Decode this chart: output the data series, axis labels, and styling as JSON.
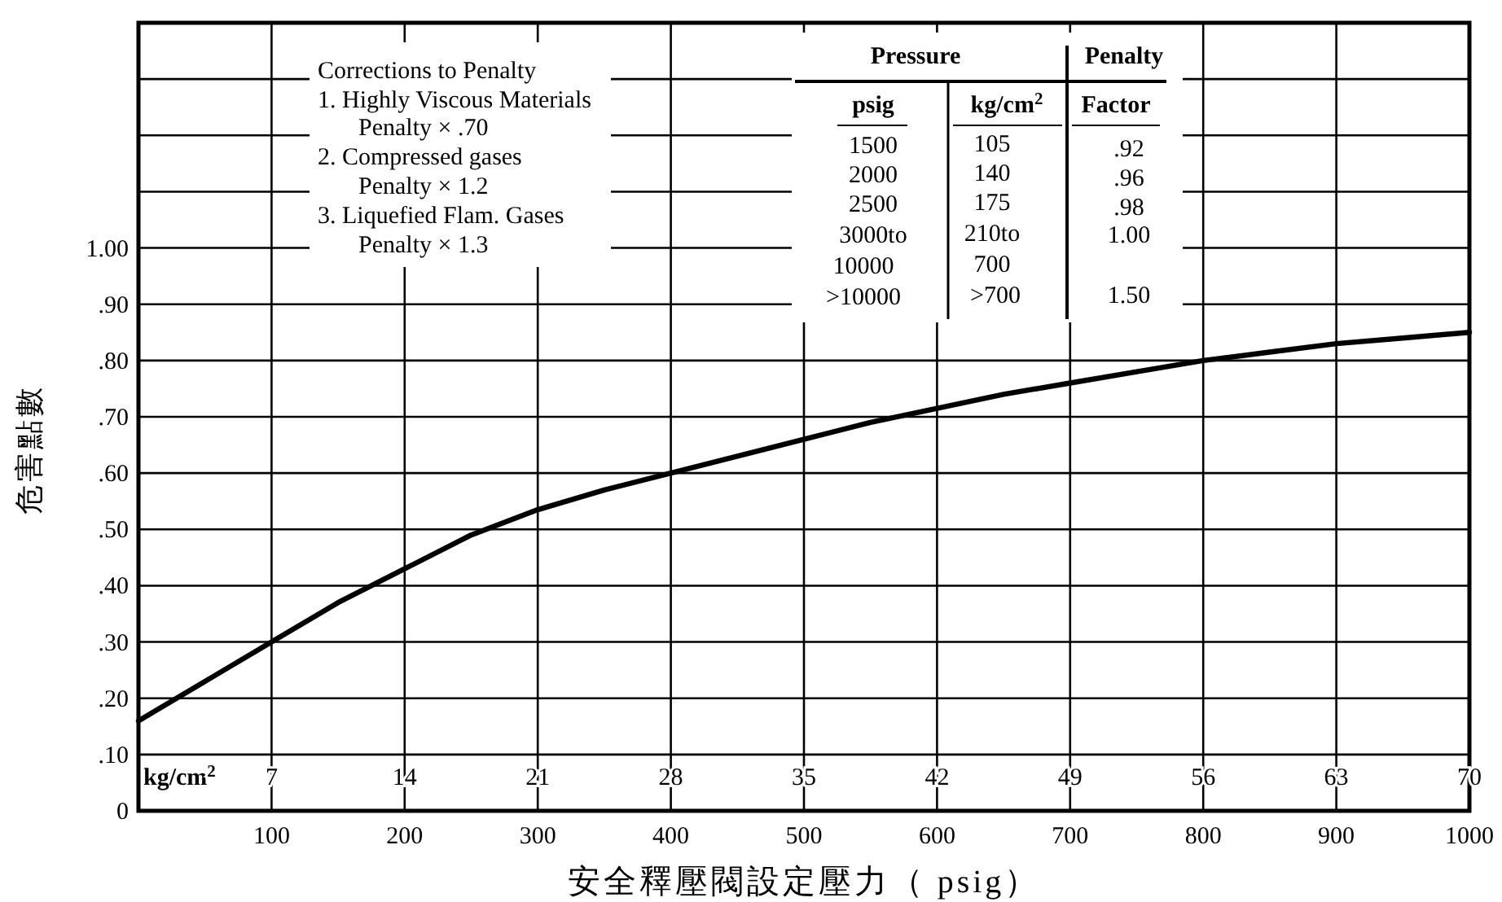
{
  "chart_data": {
    "type": "line",
    "xlabel": "安全釋壓閥設定壓力（ psig）",
    "ylabel": "危害點數",
    "x2label": "kg/cm$^{2}$",
    "x": [
      0,
      50,
      100,
      150,
      200,
      250,
      300,
      350,
      400,
      450,
      500,
      550,
      600,
      650,
      700,
      750,
      800,
      850,
      900,
      950,
      1000
    ],
    "series": [
      {
        "color": "#000000",
        "values": [
          0.16,
          0.23,
          0.3,
          0.37,
          0.43,
          0.49,
          0.535,
          0.57,
          0.6,
          0.63,
          0.66,
          0.69,
          0.715,
          0.74,
          0.76,
          0.78,
          0.8,
          0.815,
          0.83,
          0.84,
          0.85
        ]
      }
    ],
    "xlim": [
      0,
      1000
    ],
    "ylim": [
      0,
      1.4
    ],
    "x2lim": [
      0,
      70
    ],
    "xticks": [
      100,
      200,
      300,
      400,
      500,
      600,
      700,
      800,
      900,
      1000
    ],
    "x2ticks": [
      7,
      14,
      21,
      28,
      35,
      42,
      49,
      56,
      63,
      70
    ],
    "yticks": [
      0,
      {
        "value": 0.1,
        "label": ".10"
      },
      {
        "value": 0.2,
        "label": ".20"
      },
      {
        "value": 0.3,
        "label": ".30"
      },
      {
        "value": 0.4,
        "label": ".40"
      },
      {
        "value": 0.5,
        "label": ".50"
      },
      {
        "value": 0.6,
        "label": ".60"
      },
      {
        "value": 0.7,
        "label": ".70"
      },
      {
        "value": 0.8,
        "label": ".80"
      },
      {
        "value": 0.9,
        "label": ".90"
      },
      {
        "value": 1.0,
        "label": "1.00"
      },
      {
        "value": 1.1,
        "label": null
      },
      {
        "value": 1.2,
        "label": null
      },
      {
        "value": 1.3,
        "label": null
      },
      {
        "value": 1.4,
        "label": null
      }
    ],
    "grid": true,
    "marker": "none",
    "line_style": "solid",
    "annotations": [
      "Corrections to Penalty",
      "1. Highly Viscous Materials",
      "Penalty × .70",
      "2. Compressed gases",
      "Penalty × 1.2",
      "3. Liquefied Flam. Gases",
      "Penalty × 1.3",
      "Pressure",
      "Penalty",
      "psig",
      "kg/cm$^{2}$",
      "Factor",
      "1500",
      "105",
      ".92",
      "2000",
      "140",
      ".96",
      "2500",
      "175",
      ".98",
      "3000to",
      "210to",
      "1.00",
      "10000",
      "700",
      ">10000",
      ">700",
      "1.50"
    ]
  }
}
